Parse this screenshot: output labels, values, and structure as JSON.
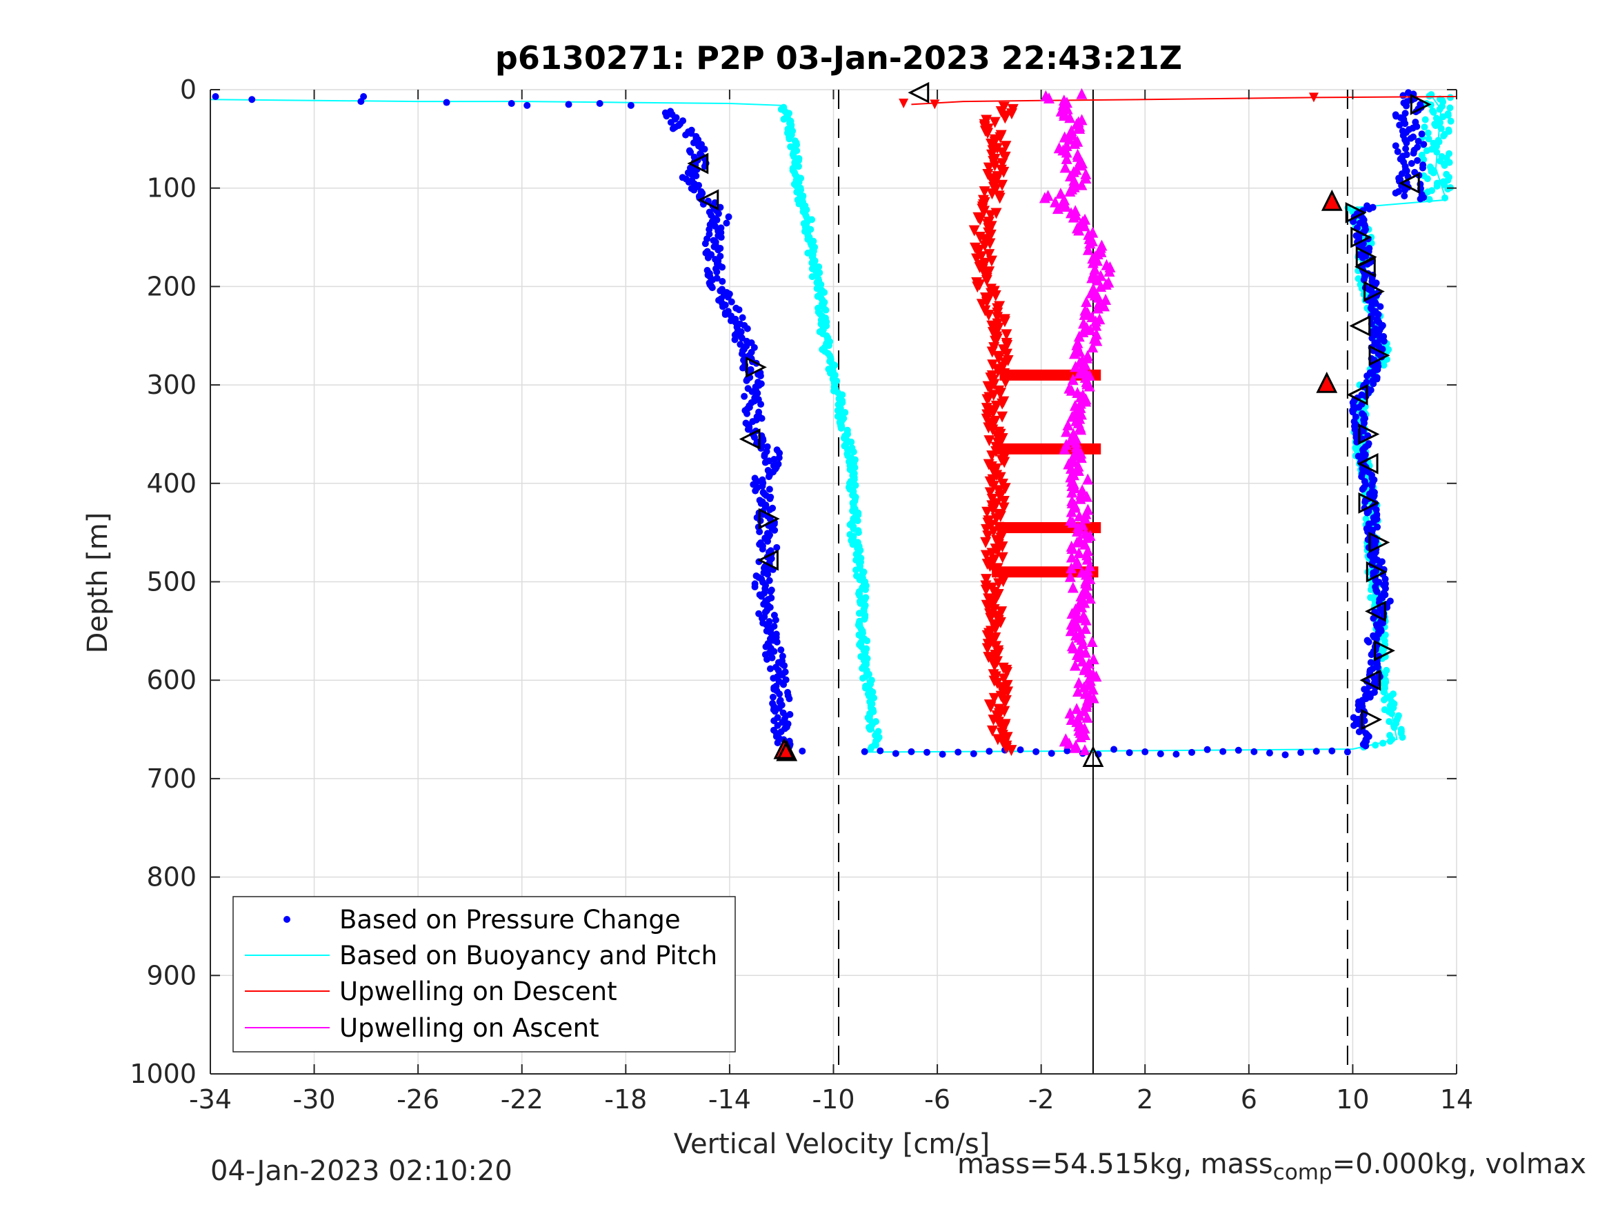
{
  "chart_data": {
    "type": "scatter",
    "title": "p6130271: P2P 03-Jan-2023 22:43:21Z",
    "xlabel": "Vertical Velocity [cm/s]",
    "ylabel": "Depth [m]",
    "xlim": [
      -34,
      14
    ],
    "ylim": [
      0,
      1000
    ],
    "y_reversed": true,
    "grid": true,
    "x_ticks": [
      "-34",
      "-30",
      "-26",
      "-22",
      "-18",
      "-14",
      "-10",
      "-6",
      "-2",
      "2",
      "6",
      "10",
      "14"
    ],
    "y_ticks": [
      "0",
      "100",
      "200",
      "300",
      "400",
      "500",
      "600",
      "700",
      "800",
      "900",
      "1000"
    ],
    "legend_position": "bottom-left",
    "reference_lines": [
      {
        "x": -9.8,
        "style": "dashed",
        "color": "#000000"
      },
      {
        "x": 0,
        "style": "solid",
        "color": "#000000"
      },
      {
        "x": 9.8,
        "style": "dashed",
        "color": "#000000"
      }
    ],
    "series": [
      {
        "name": "Based on Pressure Change",
        "color": "#0000ff",
        "marker": "dot",
        "description_dive": [
          [
            -33.8,
            7
          ],
          [
            -32.4,
            10
          ],
          [
            -28.1,
            7
          ],
          [
            -28.2,
            12
          ],
          [
            -24.9,
            13
          ],
          [
            -22.4,
            14
          ],
          [
            -21.8,
            16
          ],
          [
            -20.2,
            15
          ],
          [
            -19,
            14
          ],
          [
            -17.8,
            16
          ],
          [
            -16.5,
            20
          ],
          [
            -16,
            35
          ],
          [
            -15.5,
            50
          ],
          [
            -15,
            70
          ],
          [
            -15.5,
            90
          ],
          [
            -15,
            110
          ],
          [
            -14.3,
            130
          ],
          [
            -14.6,
            150
          ],
          [
            -14.6,
            175
          ],
          [
            -14.4,
            200
          ],
          [
            -13.8,
            230
          ],
          [
            -13.4,
            260
          ],
          [
            -13.1,
            290
          ],
          [
            -13.1,
            320
          ],
          [
            -13,
            350
          ],
          [
            -12.3,
            370
          ],
          [
            -12.8,
            400
          ],
          [
            -12.6,
            440
          ],
          [
            -12.5,
            470
          ],
          [
            -12.7,
            500
          ],
          [
            -12.6,
            530
          ],
          [
            -12.3,
            570
          ],
          [
            -12,
            610
          ],
          [
            -12,
            640
          ],
          [
            -12,
            670
          ],
          [
            -11.2,
            672
          ]
        ],
        "description_climb": [
          [
            -8.9,
            673
          ],
          [
            -6,
            675
          ],
          [
            -3.5,
            678
          ],
          [
            0,
            678
          ],
          [
            3,
            678
          ],
          [
            6,
            675
          ],
          [
            9,
            672
          ],
          [
            10.5,
            670
          ],
          [
            10.2,
            640
          ],
          [
            10.8,
            600
          ],
          [
            10.8,
            560
          ],
          [
            11.2,
            520
          ],
          [
            10.9,
            480
          ],
          [
            10.7,
            440
          ],
          [
            10.6,
            400
          ],
          [
            10.4,
            360
          ],
          [
            10.2,
            320
          ],
          [
            10.8,
            290
          ],
          [
            11,
            250
          ],
          [
            10.8,
            210
          ],
          [
            10.5,
            170
          ],
          [
            10.2,
            130
          ],
          [
            10.7,
            115
          ],
          [
            12.2,
            100
          ],
          [
            12,
            70
          ],
          [
            12.3,
            40
          ],
          [
            12.2,
            15
          ],
          [
            12,
            5
          ]
        ]
      },
      {
        "name": "Based on Buoyancy and Pitch",
        "color": "#00ffff",
        "line_dive": [
          [
            -34,
            10
          ],
          [
            -30,
            11
          ],
          [
            -26,
            12
          ],
          [
            -22,
            12
          ],
          [
            -18,
            13
          ],
          [
            -14,
            14
          ],
          [
            -12,
            16
          ],
          [
            -11.8,
            30
          ],
          [
            -11.5,
            60
          ],
          [
            -11.4,
            100
          ],
          [
            -11,
            130
          ],
          [
            -10.8,
            170
          ],
          [
            -10.5,
            210
          ],
          [
            -10.3,
            260
          ],
          [
            -9.9,
            300
          ],
          [
            -9.6,
            340
          ],
          [
            -9.3,
            380
          ],
          [
            -9.2,
            420
          ],
          [
            -9.2,
            460
          ],
          [
            -8.9,
            500
          ],
          [
            -8.9,
            540
          ],
          [
            -8.8,
            580
          ],
          [
            -8.6,
            620
          ],
          [
            -8.4,
            660
          ],
          [
            -8.7,
            673
          ]
        ],
        "line_climb": [
          [
            -8.7,
            673
          ],
          [
            0,
            672
          ],
          [
            10,
            670
          ],
          [
            11.7,
            660
          ],
          [
            11.4,
            620
          ],
          [
            11,
            580
          ],
          [
            11.1,
            540
          ],
          [
            10.8,
            500
          ],
          [
            10.8,
            460
          ],
          [
            10.7,
            420
          ],
          [
            10.4,
            380
          ],
          [
            10.2,
            340
          ],
          [
            10.5,
            300
          ],
          [
            11.2,
            270
          ],
          [
            10.9,
            230
          ],
          [
            10.4,
            190
          ],
          [
            10.5,
            150
          ],
          [
            10,
            120
          ],
          [
            13.6,
            112
          ],
          [
            13.2,
            80
          ],
          [
            13.3,
            50
          ],
          [
            13.4,
            20
          ],
          [
            13,
            5
          ]
        ]
      },
      {
        "name": "Upwelling on Descent",
        "color": "#ff0000",
        "marker": "triangle-down",
        "line": [
          [
            -7,
            15
          ],
          [
            -5,
            12
          ],
          [
            -2,
            11
          ],
          [
            2,
            10
          ],
          [
            8.5,
            8
          ],
          [
            14,
            7
          ]
        ],
        "points": [
          [
            -6.8,
            15
          ],
          [
            -4,
            30
          ],
          [
            -3.6,
            60
          ],
          [
            -3.8,
            100
          ],
          [
            -4.3,
            150
          ],
          [
            -4.2,
            200
          ],
          [
            -3.5,
            250
          ],
          [
            -3.7,
            300
          ],
          [
            -3.8,
            350
          ],
          [
            -3.7,
            400
          ],
          [
            -3.8,
            450
          ],
          [
            -3.8,
            500
          ],
          [
            -3.8,
            550
          ],
          [
            -3.6,
            600
          ],
          [
            -3.7,
            650
          ],
          [
            -3.3,
            672
          ]
        ],
        "bands": [
          [
            -3.6,
            0.3,
            290
          ],
          [
            -3.7,
            0.3,
            365
          ],
          [
            -3.7,
            0.3,
            445
          ],
          [
            -3.9,
            0.2,
            490
          ]
        ]
      },
      {
        "name": "Upwelling on Ascent",
        "color": "#ff00ff",
        "marker": "triangle-up",
        "points": [
          [
            -1.5,
            5
          ],
          [
            -0.7,
            30
          ],
          [
            -1,
            60
          ],
          [
            -0.5,
            90
          ],
          [
            -1.5,
            110
          ],
          [
            -0.5,
            130
          ],
          [
            0.3,
            170
          ],
          [
            0.1,
            220
          ],
          [
            -0.3,
            260
          ],
          [
            -0.5,
            300
          ],
          [
            -0.8,
            350
          ],
          [
            -0.5,
            400
          ],
          [
            -0.5,
            450
          ],
          [
            -0.5,
            500
          ],
          [
            -0.5,
            550
          ],
          [
            -0.2,
            600
          ],
          [
            -0.7,
            650
          ],
          [
            -0.7,
            672
          ]
        ]
      }
    ],
    "annotations": [
      {
        "type": "left-triangle",
        "points": [
          [
            -6.7,
            3
          ],
          [
            -15.2,
            75
          ],
          [
            -14.8,
            112
          ],
          [
            -13.2,
            355
          ],
          [
            -12.5,
            478
          ],
          [
            10.3,
            240
          ],
          [
            10.6,
            380
          ],
          [
            10.9,
            530
          ],
          [
            10.7,
            600
          ],
          [
            10.2,
            310
          ],
          [
            12.2,
            95
          ],
          [
            10.5,
            180
          ]
        ]
      },
      {
        "type": "right-triangle",
        "points": [
          [
            12.6,
            15
          ],
          [
            -13,
            282
          ],
          [
            -12.5,
            436
          ],
          [
            10.8,
            205
          ],
          [
            11,
            270
          ],
          [
            10.6,
            350
          ],
          [
            10.6,
            420
          ],
          [
            11.0,
            460
          ],
          [
            10.9,
            490
          ],
          [
            11.2,
            570
          ],
          [
            10.7,
            640
          ],
          [
            10.1,
            125
          ],
          [
            10.3,
            150
          ],
          [
            10.5,
            170
          ]
        ]
      },
      {
        "type": "red-triangle",
        "points": [
          [
            -11.9,
            670
          ],
          [
            9.2,
            113
          ],
          [
            9,
            298
          ]
        ]
      },
      {
        "type": "marker-up",
        "points": [
          [
            0,
            678
          ],
          [
            -11.8,
            672
          ]
        ]
      }
    ]
  },
  "footer": {
    "timestamp": "04-Jan-2023 02:10:20",
    "mass_text_1": "mass=54.515kg, mass",
    "mass_sub": "comp",
    "mass_text_2": "=0.000kg, volmax"
  },
  "legend": {
    "items": [
      "Based on Pressure Change",
      "Based on Buoyancy and Pitch",
      "Upwelling on Descent",
      "Upwelling on Ascent"
    ]
  }
}
